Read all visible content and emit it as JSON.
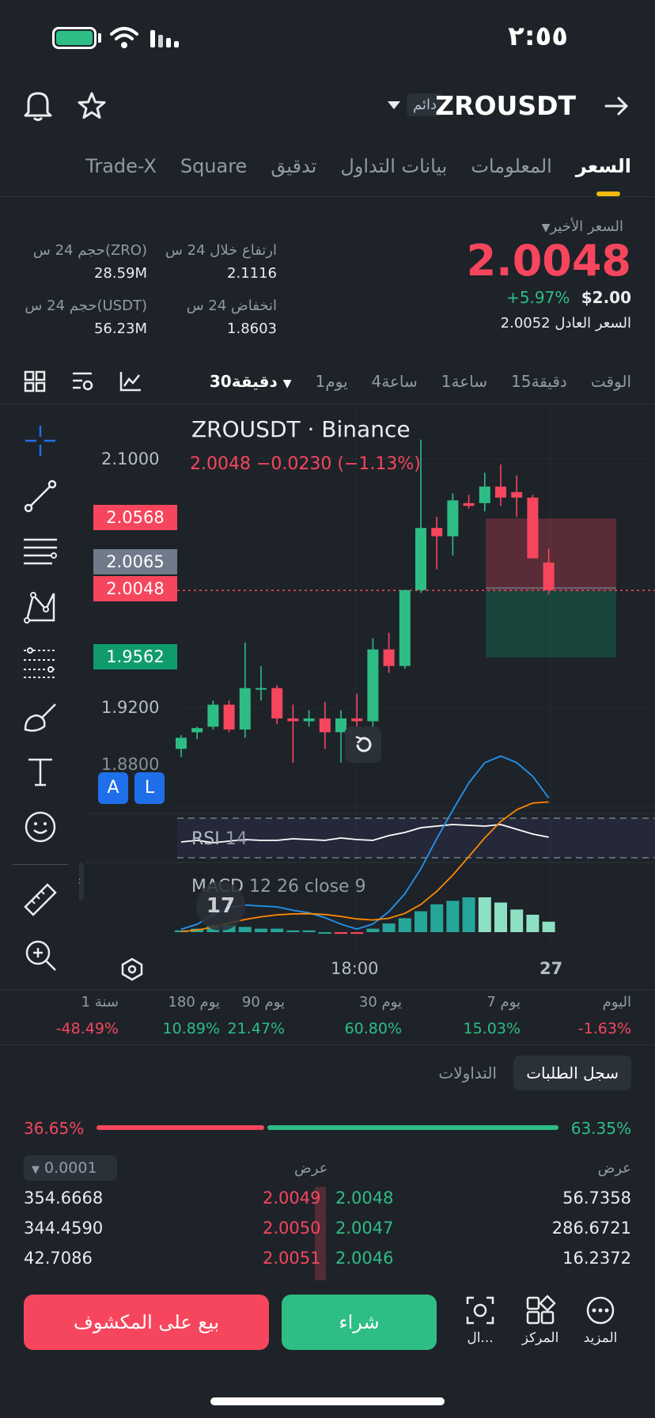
{
  "status": {
    "time": "٢:٥٥"
  },
  "header": {
    "symbol": "ZROUSDT",
    "badge": "دائم"
  },
  "tabs": [
    {
      "label": "السعر",
      "active": true
    },
    {
      "label": "المعلومات"
    },
    {
      "label": "بيانات التداول"
    },
    {
      "label": "تدقيق"
    },
    {
      "label": "Square"
    },
    {
      "label": "Trade-X"
    }
  ],
  "price": {
    "last_label": "السعر الأخير",
    "last": "2.0048",
    "change_pct": "+5.97%",
    "usd": "$2.00",
    "fair_label": "السعر العادل",
    "fair": "2.0052"
  },
  "stats": {
    "high_label": "ارتفاع خلال 24 س",
    "high": "2.1116",
    "vol_zro_label": "حجم 24 س(ZRO)",
    "vol_zro": "28.59M",
    "low_label": "انخفاض 24 س",
    "low": "1.8603",
    "vol_usdt_label": "حجم 24 س(USDT)",
    "vol_usdt": "56.23M"
  },
  "timeframes": {
    "time_label": "الوقت",
    "items": [
      "15دقيقة",
      "1ساعة",
      "4ساعة",
      "1يوم"
    ],
    "active": "30دقيقة"
  },
  "chart": {
    "title": "ZROUSDT · Binance",
    "ohlc": "2.0048  −0.0230 (−1.13%)",
    "y_labels": [
      "2.1000",
      "1.9200",
      "1.8800"
    ],
    "tags": {
      "red_top": "2.0568",
      "grey": "2.0065",
      "red_last": "2.0048",
      "green": "1.9562"
    },
    "rsi_label": "RSI",
    "rsi_param": "14",
    "macd_label": "MACD",
    "macd_params": "12 26 close 9",
    "x_labels": [
      "18:00",
      "27"
    ],
    "a_label": "A",
    "l_label": "L"
  },
  "chart_data": {
    "type": "candlestick",
    "title": "ZROUSDT · Binance",
    "interval": "30m",
    "y_ticks": [
      2.1,
      1.92,
      1.88
    ],
    "x_ticks": [
      "18:00",
      "27"
    ],
    "candles": [
      {
        "o": 1.89,
        "h": 1.9,
        "l": 1.884,
        "c": 1.898
      },
      {
        "o": 1.902,
        "h": 1.906,
        "l": 1.897,
        "c": 1.905
      },
      {
        "o": 1.906,
        "h": 1.925,
        "l": 1.904,
        "c": 1.922
      },
      {
        "o": 1.922,
        "h": 1.925,
        "l": 1.902,
        "c": 1.904
      },
      {
        "o": 1.904,
        "h": 1.967,
        "l": 1.898,
        "c": 1.934
      },
      {
        "o": 1.934,
        "h": 1.95,
        "l": 1.925,
        "c": 1.934
      },
      {
        "o": 1.934,
        "h": 1.936,
        "l": 1.908,
        "c": 1.912
      },
      {
        "o": 1.912,
        "h": 1.922,
        "l": 1.88,
        "c": 1.91
      },
      {
        "o": 1.91,
        "h": 1.918,
        "l": 1.906,
        "c": 1.912
      },
      {
        "o": 1.912,
        "h": 1.924,
        "l": 1.89,
        "c": 1.902
      },
      {
        "o": 1.902,
        "h": 1.918,
        "l": 1.88,
        "c": 1.912
      },
      {
        "o": 1.912,
        "h": 1.93,
        "l": 1.906,
        "c": 1.91
      },
      {
        "o": 1.91,
        "h": 1.97,
        "l": 1.906,
        "c": 1.962
      },
      {
        "o": 1.962,
        "h": 1.974,
        "l": 1.945,
        "c": 1.95
      },
      {
        "o": 1.95,
        "h": 2.005,
        "l": 1.948,
        "c": 2.005
      },
      {
        "o": 2.005,
        "h": 2.114,
        "l": 2.003,
        "c": 2.05
      },
      {
        "o": 2.05,
        "h": 2.058,
        "l": 2.02,
        "c": 2.044
      },
      {
        "o": 2.044,
        "h": 2.075,
        "l": 2.03,
        "c": 2.07
      },
      {
        "o": 2.068,
        "h": 2.074,
        "l": 2.064,
        "c": 2.066
      },
      {
        "o": 2.068,
        "h": 2.09,
        "l": 2.062,
        "c": 2.08
      },
      {
        "o": 2.08,
        "h": 2.096,
        "l": 2.066,
        "c": 2.072
      },
      {
        "o": 2.076,
        "h": 2.088,
        "l": 2.058,
        "c": 2.072
      },
      {
        "o": 2.072,
        "h": 2.074,
        "l": 2.028,
        "c": 2.028
      },
      {
        "o": 2.025,
        "h": 2.035,
        "l": 2.002,
        "c": 2.005
      }
    ],
    "last_price": 2.0048,
    "rsi": [
      50,
      52,
      49,
      51,
      53,
      52,
      52,
      54,
      53,
      52,
      55,
      53,
      52,
      58,
      62,
      68,
      70,
      72,
      71,
      70,
      72,
      66,
      60,
      56
    ],
    "macd_hist": [
      0.001,
      0.002,
      0.004,
      0.004,
      0.003,
      0.002,
      0.002,
      0.001,
      0.001,
      0.0,
      -0.001,
      -0.001,
      0.002,
      0.005,
      0.008,
      0.012,
      0.016,
      0.018,
      0.02,
      0.02,
      0.017,
      0.013,
      0.01,
      0.006
    ]
  },
  "performance": [
    {
      "label": "اليوم",
      "value": "-1.63%",
      "dir": "down"
    },
    {
      "label": "7 يوم",
      "value": "15.03%",
      "dir": "up"
    },
    {
      "label": "30 يوم",
      "value": "60.80%",
      "dir": "up"
    },
    {
      "label": "90 يوم",
      "value": "21.47%",
      "dir": "up"
    },
    {
      "label": "180 يوم",
      "value": "10.89%",
      "dir": "up"
    },
    {
      "label": "1 سنة",
      "value": "-48.49%",
      "dir": "down"
    }
  ],
  "orderbook": {
    "tab_orders": "سجل الطلبات",
    "tab_trades": "التداولات",
    "ratio_sell": "36.65%",
    "ratio_buy": "63.35%",
    "col_bid": "عرض",
    "col_ask": "عرض",
    "step": "0.0001",
    "rows": [
      {
        "bid_qty": "56.7358",
        "bid": "2.0048",
        "ask": "2.0049",
        "ask_qty": "354.6668"
      },
      {
        "bid_qty": "286.6721",
        "bid": "2.0047",
        "ask": "2.0050",
        "ask_qty": "344.4590"
      },
      {
        "bid_qty": "16.2372",
        "bid": "2.0046",
        "ask": "2.0051",
        "ask_qty": "42.7086"
      }
    ]
  },
  "actions": {
    "more": "المزيد",
    "center": "المركز",
    "third": "ال...",
    "buy": "شراء",
    "sell": "بيع على المكشوف"
  }
}
